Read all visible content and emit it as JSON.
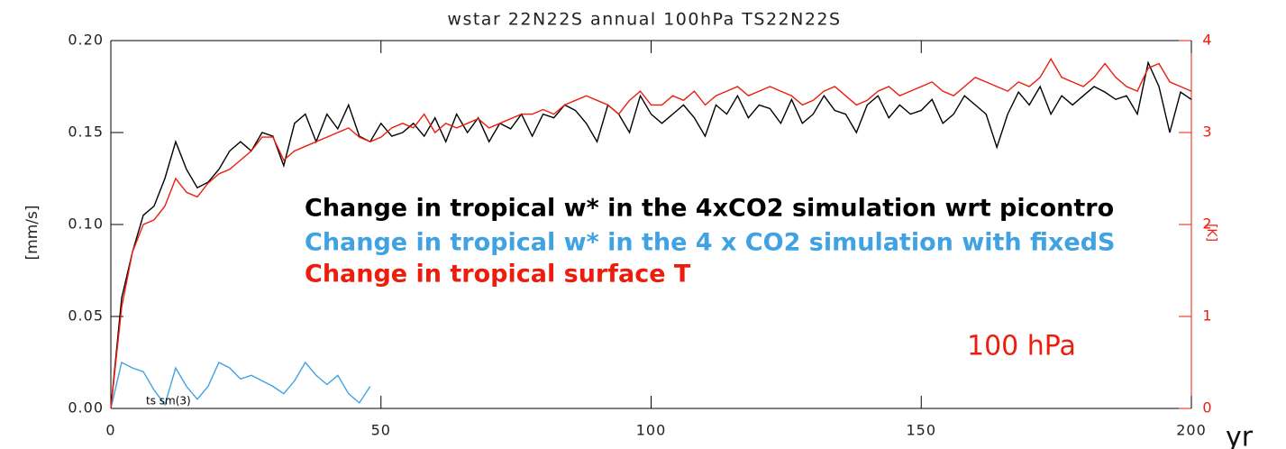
{
  "chart_data": {
    "type": "line",
    "title": "wstar 22N22S annual 100hPa TS22N22S",
    "xlabel": "yr",
    "ylabel": "[mm/s]",
    "y2label": "[K]",
    "x": [
      0,
      2,
      4,
      6,
      8,
      10,
      12,
      14,
      16,
      18,
      20,
      22,
      24,
      26,
      28,
      30,
      32,
      34,
      36,
      38,
      40,
      42,
      44,
      46,
      48,
      50,
      52,
      54,
      56,
      58,
      60,
      62,
      64,
      66,
      68,
      70,
      72,
      74,
      76,
      78,
      80,
      82,
      84,
      86,
      88,
      90,
      92,
      94,
      96,
      98,
      100,
      102,
      104,
      106,
      108,
      110,
      112,
      114,
      116,
      118,
      120,
      122,
      124,
      126,
      128,
      130,
      132,
      134,
      136,
      138,
      140,
      142,
      144,
      146,
      148,
      150,
      152,
      154,
      156,
      158,
      160,
      162,
      164,
      166,
      168,
      170,
      172,
      174,
      176,
      178,
      180,
      182,
      184,
      186,
      188,
      190,
      192,
      194,
      196,
      198,
      200
    ],
    "xlim": [
      0,
      200
    ],
    "xticks": [
      0,
      50,
      100,
      150,
      200
    ],
    "ylim": [
      0,
      0.2
    ],
    "yticks": [
      {
        "value": 0,
        "label": "0.00"
      },
      {
        "value": 0.05,
        "label": "0.05"
      },
      {
        "value": 0.1,
        "label": "0.10"
      },
      {
        "value": 0.15,
        "label": "0.15"
      },
      {
        "value": 0.2,
        "label": "0.20"
      }
    ],
    "y2lim": [
      0,
      4
    ],
    "y2ticks": [
      0,
      1,
      2,
      3,
      4
    ],
    "grid": false,
    "series": [
      {
        "name": "Change in tropical w*  in the 4xCO2 simulation wrt picontro",
        "color": "#000000",
        "values": [
          0,
          0.06,
          0.085,
          0.105,
          0.11,
          0.125,
          0.145,
          0.13,
          0.12,
          0.123,
          0.13,
          0.14,
          0.145,
          0.14,
          0.15,
          0.148,
          0.132,
          0.155,
          0.16,
          0.145,
          0.16,
          0.152,
          0.165,
          0.148,
          0.145,
          0.155,
          0.148,
          0.15,
          0.155,
          0.148,
          0.158,
          0.145,
          0.16,
          0.15,
          0.158,
          0.145,
          0.155,
          0.152,
          0.16,
          0.148,
          0.16,
          0.158,
          0.165,
          0.162,
          0.155,
          0.145,
          0.165,
          0.16,
          0.15,
          0.17,
          0.16,
          0.155,
          0.16,
          0.165,
          0.158,
          0.148,
          0.165,
          0.16,
          0.17,
          0.158,
          0.165,
          0.163,
          0.155,
          0.168,
          0.155,
          0.16,
          0.17,
          0.162,
          0.16,
          0.15,
          0.165,
          0.17,
          0.158,
          0.165,
          0.16,
          0.162,
          0.168,
          0.155,
          0.16,
          0.17,
          0.165,
          0.16,
          0.142,
          0.16,
          0.172,
          0.165,
          0.175,
          0.16,
          0.17,
          0.165,
          0.17,
          0.175,
          0.172,
          0.168,
          0.17,
          0.16,
          0.188,
          0.175,
          0.15,
          0.172,
          0.168
        ]
      },
      {
        "name": "Change in tropical w* in the 4 x CO2 simulation with fixedS",
        "color": "#3fa2e3",
        "x": [
          0,
          2,
          4,
          6,
          8,
          10,
          12,
          14,
          16,
          18,
          20,
          22,
          24,
          26,
          28,
          30,
          32,
          34,
          36,
          38,
          40,
          42,
          44,
          46,
          48
        ],
        "values": [
          0,
          0.025,
          0.022,
          0.02,
          0.01,
          0.002,
          0.022,
          0.012,
          0.005,
          0.012,
          0.025,
          0.022,
          0.016,
          0.018,
          0.015,
          0.012,
          0.008,
          0.015,
          0.025,
          0.018,
          0.013,
          0.018,
          0.008,
          0.003,
          0.012
        ]
      },
      {
        "name": "Change in tropical surface T",
        "color": "#ee1c0c",
        "axis": "y2",
        "values": [
          0,
          1.1,
          1.7,
          2.0,
          2.05,
          2.2,
          2.5,
          2.35,
          2.3,
          2.45,
          2.55,
          2.6,
          2.7,
          2.8,
          2.95,
          2.95,
          2.7,
          2.8,
          2.85,
          2.9,
          2.95,
          3.0,
          3.05,
          2.95,
          2.9,
          2.95,
          3.05,
          3.1,
          3.05,
          3.2,
          3.0,
          3.1,
          3.05,
          3.1,
          3.15,
          3.05,
          3.1,
          3.15,
          3.2,
          3.2,
          3.25,
          3.2,
          3.3,
          3.35,
          3.4,
          3.35,
          3.3,
          3.2,
          3.35,
          3.45,
          3.3,
          3.3,
          3.4,
          3.35,
          3.45,
          3.3,
          3.4,
          3.45,
          3.5,
          3.4,
          3.45,
          3.5,
          3.45,
          3.4,
          3.3,
          3.35,
          3.45,
          3.5,
          3.4,
          3.3,
          3.35,
          3.45,
          3.5,
          3.4,
          3.45,
          3.5,
          3.55,
          3.45,
          3.4,
          3.5,
          3.6,
          3.55,
          3.5,
          3.45,
          3.55,
          3.5,
          3.6,
          3.8,
          3.6,
          3.55,
          3.5,
          3.6,
          3.75,
          3.6,
          3.5,
          3.45,
          3.7,
          3.75,
          3.55,
          3.5,
          3.45
        ]
      }
    ],
    "annotations": [
      {
        "text": "100 hPa",
        "color": "#ee1c0c"
      },
      {
        "text": "ts sm(3)",
        "color": "#000000"
      }
    ]
  }
}
